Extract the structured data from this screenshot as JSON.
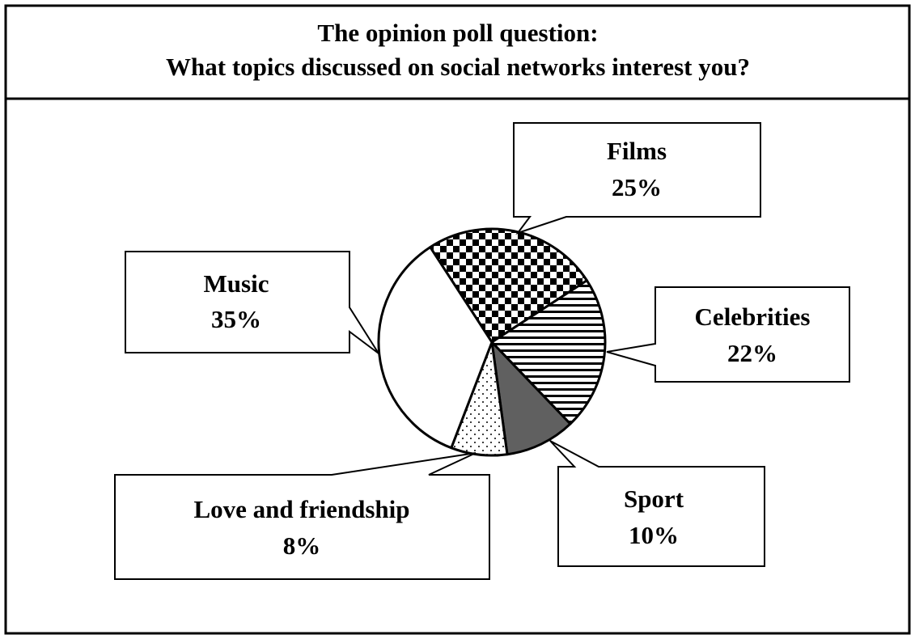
{
  "chart_data": {
    "type": "pie",
    "title": "The opinion poll question:",
    "subtitle": "What topics discussed on social networks interest you?",
    "categories": [
      "Films",
      "Celebrities",
      "Sport",
      "Love and friendship",
      "Music"
    ],
    "values": [
      25,
      22,
      10,
      8,
      35
    ],
    "value_labels": [
      "25%",
      "22%",
      "10%",
      "8%",
      "35%"
    ],
    "colors": [
      "url(#checker)",
      "url(#stripes)",
      "#606060",
      "url(#dots)",
      "#ffffff"
    ],
    "start_angle": -33
  }
}
